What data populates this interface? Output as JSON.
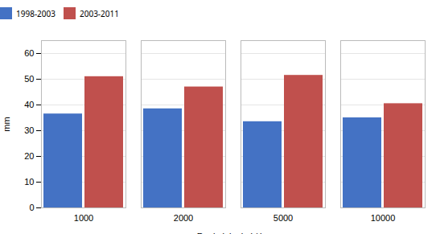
{
  "chart_data": {
    "type": "bar",
    "categories": [
      "1000",
      "2000",
      "5000",
      "10000"
    ],
    "series": [
      {
        "name": "1998-2003",
        "color": "#4472C4",
        "values": [
          36.5,
          38.5,
          33.5,
          35.0
        ]
      },
      {
        "name": "2003-2011",
        "color": "#C0504D",
        "values": [
          51.0,
          47.0,
          51.5,
          40.5
        ]
      }
    ],
    "xlabel": "Runkuluku kpl / ha",
    "ylabel": "mm",
    "ylim": [
      0,
      65
    ],
    "yticks": [
      0,
      10,
      20,
      30,
      40,
      50,
      60
    ],
    "grid": true,
    "legend": "top"
  }
}
